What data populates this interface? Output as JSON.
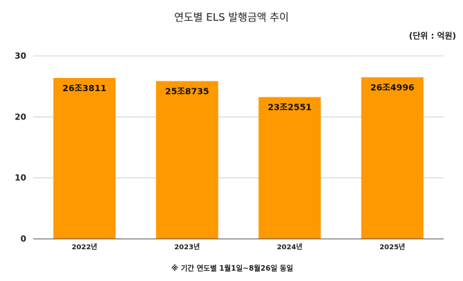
{
  "chart_data": {
    "type": "bar",
    "title": "연도별 ELS 발행금액 추이",
    "unit": "(단위 : 억원)",
    "categories": [
      "2022년",
      "2023년",
      "2024년",
      "2025년"
    ],
    "values": [
      26.3811,
      25.8735,
      23.2551,
      26.4996
    ],
    "data_labels": [
      "26조3811",
      "25조8735",
      "23조2551",
      "26조4996"
    ],
    "yticks": [
      0,
      10,
      20,
      30
    ],
    "ylim": [
      0,
      30
    ],
    "bar_color": "#ff9900",
    "grid": true,
    "note": "※ 기간 연도별 1월1일~8월26일 동일"
  }
}
